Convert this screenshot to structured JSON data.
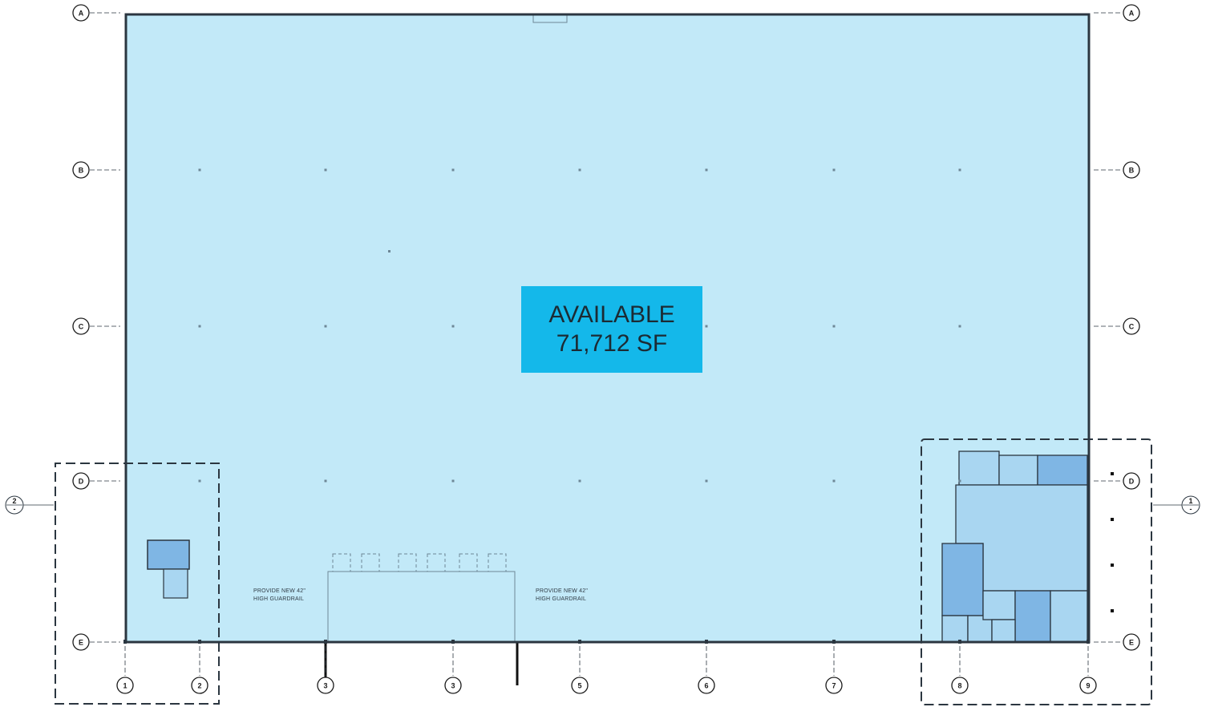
{
  "available": {
    "title": "AVAILABLE",
    "area": "71,712 SF"
  },
  "notes": {
    "left": [
      "PROVIDE NEW 42\"",
      "HIGH GUARDRAIL"
    ],
    "right": [
      "PROVIDE NEW 42\"",
      "HIGH GUARDRAIL"
    ]
  },
  "row_labels": [
    "A",
    "B",
    "C",
    "D",
    "E"
  ],
  "column_labels": [
    "1",
    "2",
    "3",
    "3",
    "5",
    "6",
    "7",
    "8",
    "9"
  ],
  "detail_callouts": {
    "left": {
      "number": "2",
      "sheet": "-"
    },
    "right": {
      "number": "1",
      "sheet": "-"
    }
  },
  "colors": {
    "floor": "#c2e9f8",
    "highlight": "#14b8ea",
    "room": "#a9d6f1",
    "room_dark": "#7fb6e4",
    "wall": "#2b3640"
  }
}
